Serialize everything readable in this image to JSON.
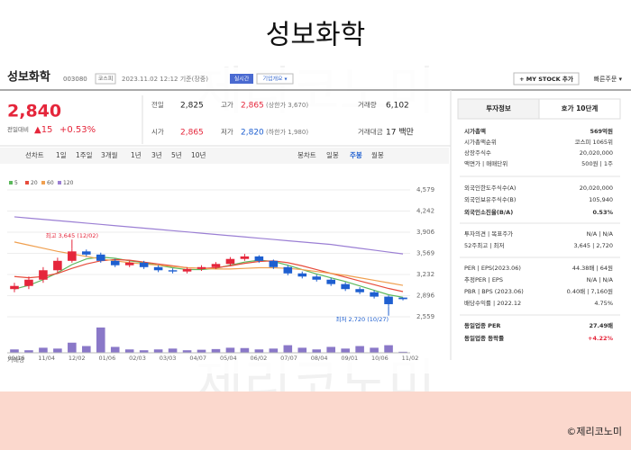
{
  "title": "성보화학",
  "watermark": "제리코노미",
  "copyright": "©제리코노미",
  "header": {
    "name": "성보화학",
    "code": "003080",
    "market": "코스피",
    "time": "2023.11.02 12:12 기준(장중)",
    "realtime": "실시간",
    "overview": "기업개요 ▾",
    "mystock": "+ MY STOCK 추가",
    "quick_order": "빠른주문 ▾"
  },
  "quote": {
    "price": "2,840",
    "change_label": "전일대비",
    "change": "▲15",
    "change_pct": "+0.53%"
  },
  "stats": [
    {
      "label": "전일",
      "value": "2,825"
    },
    {
      "label": "고가",
      "value": "2,865",
      "note": "(상한가 3,670)"
    },
    {
      "label": "거래량",
      "value": "6,102"
    },
    {
      "label": "시가",
      "value": "2,865"
    },
    {
      "label": "저가",
      "value": "2,820",
      "note": "(하한가 1,980)"
    },
    {
      "label": "거래대금",
      "value": "17 백만"
    }
  ],
  "chart_tabs": [
    "선차트",
    "1일",
    "1주일",
    "3개월",
    "1년",
    "3년",
    "5년",
    "10년"
  ],
  "candle_tabs": [
    "봉차트",
    "일봉",
    "주봉",
    "월봉"
  ],
  "chart_data": {
    "type": "candlestick",
    "up_color": "#e5263b",
    "down_color": "#1e5fd0",
    "x_labels": [
      "09/16",
      "11/04",
      "12/02",
      "01/06",
      "02/03",
      "03/03",
      "04/07",
      "05/04",
      "06/02",
      "07/07",
      "08/04",
      "09/01",
      "10/06",
      "11/02"
    ],
    "open": [
      3000,
      3050,
      3150,
      3300,
      3450,
      3600,
      3550,
      3450,
      3380,
      3420,
      3350,
      3300,
      3280,
      3320,
      3350,
      3400,
      3480,
      3520,
      3450,
      3350,
      3250,
      3200,
      3150,
      3080,
      3000,
      2950,
      2880,
      2865
    ],
    "high": [
      3100,
      3200,
      3350,
      3500,
      3645,
      3630,
      3580,
      3480,
      3450,
      3450,
      3380,
      3330,
      3350,
      3380,
      3430,
      3510,
      3560,
      3540,
      3470,
      3380,
      3280,
      3230,
      3180,
      3110,
      3030,
      2980,
      2900,
      2865
    ],
    "low": [
      2950,
      3000,
      3100,
      3260,
      3420,
      3520,
      3420,
      3350,
      3350,
      3320,
      3270,
      3250,
      3250,
      3290,
      3320,
      3370,
      3450,
      3420,
      3320,
      3220,
      3170,
      3120,
      3050,
      2970,
      2920,
      2850,
      2720,
      2820
    ],
    "close": [
      3050,
      3150,
      3300,
      3450,
      3600,
      3550,
      3450,
      3380,
      3420,
      3350,
      3300,
      3280,
      3320,
      3350,
      3400,
      3480,
      3520,
      3450,
      3350,
      3250,
      3200,
      3150,
      3080,
      3000,
      2950,
      2880,
      2760,
      2840
    ],
    "volume": [
      20000,
      15000,
      30000,
      25000,
      60000,
      40000,
      150000,
      35000,
      20000,
      15000,
      20000,
      25000,
      15000,
      18000,
      22000,
      30000,
      28000,
      20000,
      25000,
      45000,
      30000,
      20000,
      35000,
      25000,
      40000,
      30000,
      45000,
      6102
    ],
    "volume_lim": [
      0,
      160000
    ],
    "volume_label": "거래량",
    "ylim": [
      2559,
      4579
    ],
    "yticks": [
      {
        "value": 4579,
        "label": "4,579"
      },
      {
        "value": 4242,
        "label": "4,242"
      },
      {
        "value": 3906,
        "label": "3,906"
      },
      {
        "value": 3569,
        "label": "3,569"
      },
      {
        "value": 3232,
        "label": "3,232"
      },
      {
        "value": 2896,
        "label": "2,896"
      },
      {
        "value": 2559,
        "label": "2,559"
      }
    ],
    "series": [
      {
        "name": "5",
        "color": "#5cb85c",
        "values": [
          3000,
          3060,
          3150,
          3260,
          3390,
          3480,
          3510,
          3490,
          3450,
          3420,
          3380,
          3340,
          3310,
          3310,
          3330,
          3380,
          3430,
          3460,
          3440,
          3380,
          3310,
          3240,
          3180,
          3120,
          3050,
          2980,
          2910,
          2870
        ]
      },
      {
        "name": "20",
        "color": "#e74c3c",
        "values": [
          3200,
          3180,
          3200,
          3250,
          3330,
          3400,
          3450,
          3470,
          3460,
          3430,
          3400,
          3370,
          3340,
          3330,
          3340,
          3370,
          3410,
          3440,
          3450,
          3420,
          3370,
          3310,
          3250,
          3190,
          3130,
          3070,
          3010,
          2960
        ]
      },
      {
        "name": "60",
        "color": "#f0a050",
        "values": [
          3750,
          3700,
          3650,
          3600,
          3560,
          3520,
          3480,
          3450,
          3420,
          3400,
          3380,
          3360,
          3340,
          3330,
          3320,
          3320,
          3330,
          3340,
          3340,
          3330,
          3310,
          3280,
          3250,
          3220,
          3180,
          3140,
          3100,
          3060
        ]
      },
      {
        "name": "120",
        "color": "#9b7fd4",
        "values": [
          4150,
          4130,
          4110,
          4090,
          4070,
          4050,
          4030,
          4010,
          3990,
          3970,
          3950,
          3930,
          3910,
          3890,
          3870,
          3850,
          3830,
          3810,
          3790,
          3770,
          3750,
          3730,
          3710,
          3680,
          3650,
          3620,
          3590,
          3560
        ]
      }
    ],
    "annotations": [
      {
        "text": "최고 3,645 (12/02)",
        "value": 3645,
        "color": "#e5263b"
      },
      {
        "text": "최저 2,720 (10/27)",
        "value": 2720,
        "color": "#1e5fd0"
      }
    ]
  },
  "invest": {
    "tabs": [
      "투자정보",
      "호가 10단계"
    ],
    "rows": [
      [
        "시가총액",
        "569억원"
      ],
      [
        "시가총액순위",
        "코스피 1065위"
      ],
      [
        "상장주식수",
        "20,020,000"
      ],
      [
        "액면가 | 매매단위",
        "500원 | 1주"
      ],
      [
        "외국인한도주식수(A)",
        "20,020,000"
      ],
      [
        "외국인보유주식수(B)",
        "105,940"
      ],
      [
        "외국인소진율(B/A)",
        "0.53%"
      ],
      [
        "투자의견 | 목표주가",
        "N/A | N/A"
      ],
      [
        "52주최고 | 최저",
        "3,645 | 2,720"
      ],
      [
        "PER | EPS(2023.06)",
        "44.38배 | 64원"
      ],
      [
        "추정PER | EPS",
        "N/A | N/A"
      ],
      [
        "PBR | BPS (2023.06)",
        "0.40배 | 7,160원"
      ],
      [
        "배당수익률 | 2022.12",
        "4.75%"
      ],
      [
        "동일업종 PER",
        "27.49배"
      ],
      [
        "동일업종 등락률",
        "+4.22%"
      ]
    ]
  }
}
